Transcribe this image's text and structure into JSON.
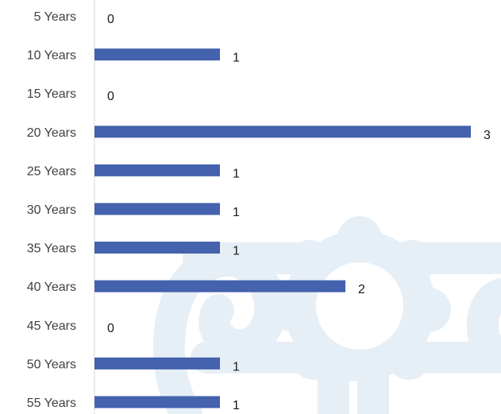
{
  "chart_data": {
    "type": "bar",
    "orientation": "horizontal",
    "categories": [
      "5 Years",
      "10 Years",
      "15 Years",
      "20 Years",
      "25 Years",
      "30 Years",
      "35 Years",
      "40 Years",
      "45 Years",
      "50 Years",
      "55 Years"
    ],
    "values": [
      0,
      1,
      0,
      3,
      1,
      1,
      1,
      2,
      0,
      1,
      1
    ],
    "data_labels": [
      "0",
      "1",
      "0",
      "3",
      "1",
      "1",
      "1",
      "2",
      "0",
      "1",
      "1"
    ],
    "xlim": [
      0,
      3
    ],
    "grid": false,
    "legend": "none",
    "bar_color": "#4462AD",
    "axis_color": "#D9D9D9"
  },
  "watermark": {
    "icon": "diploma-scroll-icon",
    "color": "#E6EEF6"
  }
}
